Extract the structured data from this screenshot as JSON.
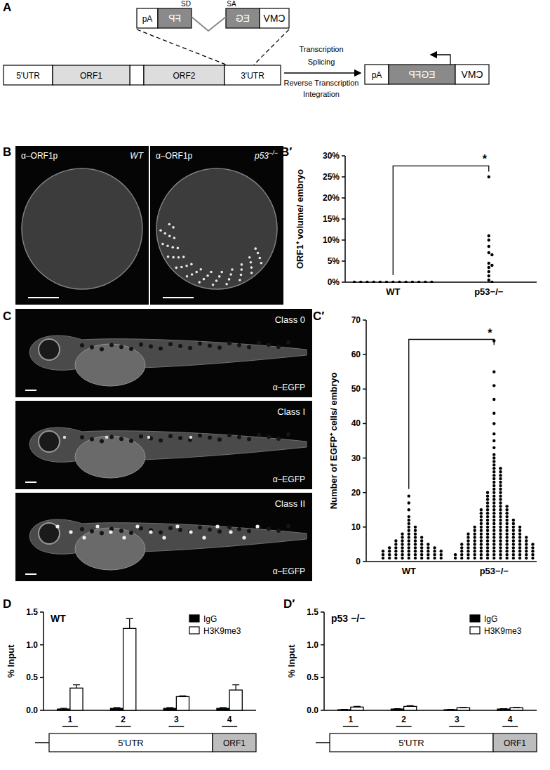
{
  "panel_labels": [
    "A",
    "B",
    "B′",
    "C",
    "C′",
    "D",
    "D′"
  ],
  "diagram": {
    "construct": {
      "labels": [
        "pA",
        "FP",
        "EG",
        "CMV"
      ],
      "splice": [
        "SD",
        "SA"
      ]
    },
    "element": [
      "5'UTR",
      "ORF1",
      "ORF2",
      "3'UTR"
    ],
    "arrow_text": [
      "Transcription",
      "Splicing",
      "Reverse Transcription",
      "Integration"
    ],
    "product": [
      "pA",
      "EGFP",
      "CMV"
    ]
  },
  "images_b": [
    {
      "stain": "α–ORF1p",
      "label": "WT",
      "sup": ""
    },
    {
      "stain": "α–ORF1p",
      "label": "p53",
      "sup": "−/−"
    }
  ],
  "images_c": [
    {
      "label": "Class 0",
      "stain": "α–EGFP"
    },
    {
      "label": "Class I",
      "stain": "α–EGFP"
    },
    {
      "label": "Class II",
      "stain": "α–EGFP"
    }
  ],
  "gene_diagram": [
    "5'UTR",
    "ORF1"
  ],
  "chart_data": [
    {
      "type": "strip",
      "ylabel": "ORF1⁺ volume/ embryo",
      "categories": [
        "WT",
        "p53−/−"
      ],
      "ylim": [
        0,
        30
      ],
      "yticks": [
        {
          "value": 0,
          "label": "0%"
        },
        {
          "value": 5,
          "label": "5%"
        },
        {
          "value": 10,
          "label": "10%"
        },
        {
          "value": 15,
          "label": "15%"
        },
        {
          "value": 20,
          "label": "20%"
        },
        {
          "value": 25,
          "label": "25%"
        },
        {
          "value": 30,
          "label": "30%"
        }
      ],
      "values": [
        [
          0,
          0,
          0,
          0,
          0,
          0,
          0,
          0,
          0,
          0,
          0,
          0,
          0
        ],
        [
          25,
          11,
          10,
          8.5,
          7,
          6.5,
          4.5,
          4,
          3.5,
          2.5,
          1.5,
          0.5,
          0
        ]
      ],
      "annotations": [
        "*"
      ]
    },
    {
      "type": "strip",
      "ylabel": "Number of EGFP⁺ cells/ embryo",
      "categories": [
        "WT",
        "p53−/−"
      ],
      "ylim": [
        0,
        70
      ],
      "yticks": [
        0,
        10,
        20,
        30,
        40,
        50,
        60,
        70
      ],
      "values": [
        [
          1,
          1,
          1,
          1,
          1,
          1,
          1,
          1,
          1,
          1,
          2,
          2,
          2,
          2,
          2,
          2,
          2,
          2,
          2,
          2,
          3,
          3,
          3,
          3,
          3,
          3,
          3,
          3,
          3,
          3,
          4,
          4,
          4,
          4,
          4,
          4,
          4,
          4,
          5,
          5,
          5,
          5,
          5,
          5,
          6,
          6,
          6,
          6,
          6,
          7,
          7,
          7,
          7,
          8,
          8,
          8,
          9,
          9,
          10,
          10,
          11,
          12,
          13,
          15,
          17,
          19
        ],
        [
          1,
          1,
          1,
          1,
          1,
          1,
          1,
          1,
          1,
          1,
          1,
          1,
          1,
          1,
          2,
          2,
          2,
          2,
          2,
          2,
          2,
          2,
          2,
          2,
          2,
          2,
          2,
          2,
          3,
          3,
          3,
          3,
          3,
          3,
          3,
          3,
          3,
          3,
          3,
          3,
          4,
          4,
          4,
          4,
          4,
          4,
          4,
          4,
          4,
          4,
          4,
          4,
          5,
          5,
          5,
          5,
          5,
          5,
          5,
          5,
          5,
          5,
          5,
          5,
          6,
          6,
          6,
          6,
          6,
          6,
          6,
          6,
          6,
          6,
          7,
          7,
          7,
          7,
          7,
          7,
          7,
          7,
          7,
          7,
          8,
          8,
          8,
          8,
          8,
          8,
          8,
          8,
          8,
          9,
          9,
          9,
          9,
          9,
          9,
          9,
          9,
          10,
          10,
          10,
          10,
          10,
          10,
          10,
          10,
          11,
          11,
          11,
          11,
          11,
          11,
          12,
          12,
          12,
          12,
          12,
          12,
          13,
          13,
          13,
          13,
          13,
          14,
          14,
          14,
          14,
          14,
          15,
          15,
          15,
          15,
          15,
          16,
          16,
          16,
          16,
          17,
          17,
          17,
          18,
          18,
          18,
          19,
          19,
          19,
          20,
          20,
          20,
          21,
          21,
          22,
          22,
          23,
          23,
          24,
          24,
          25,
          25,
          26,
          26,
          27,
          27,
          28,
          29,
          30,
          31,
          33,
          35,
          37,
          40,
          43,
          47,
          51,
          55,
          64
        ]
      ],
      "annotations": [
        "*"
      ]
    },
    {
      "type": "bar",
      "title": "WT",
      "ylabel": "% Input",
      "categories": [
        "1",
        "2",
        "3",
        "4"
      ],
      "ylim": [
        0,
        1.5
      ],
      "yticks": [
        {
          "value": 0,
          "label": "0.0"
        },
        {
          "value": 0.5,
          "label": "0.5"
        },
        {
          "value": 1,
          "label": "1.0"
        },
        {
          "value": 1.5,
          "label": "1.5"
        }
      ],
      "legend": "upper right",
      "series": [
        {
          "name": "IgG",
          "color": "#000000",
          "values": [
            0.02,
            0.03,
            0.03,
            0.03
          ],
          "errors": [
            0.01,
            0.01,
            0.01,
            0.01
          ]
        },
        {
          "name": "H3K9me3",
          "color": "#ffffff",
          "values": [
            0.34,
            1.25,
            0.21,
            0.31
          ],
          "errors": [
            0.05,
            0.15,
            0.01,
            0.08
          ]
        }
      ]
    },
    {
      "type": "bar",
      "title": "p53 −/−",
      "ylabel": "% Input",
      "categories": [
        "1",
        "2",
        "3",
        "4"
      ],
      "ylim": [
        0,
        1.5
      ],
      "yticks": [
        {
          "value": 0,
          "label": "0.0"
        },
        {
          "value": 0.5,
          "label": "0.5"
        },
        {
          "value": 1,
          "label": "1.0"
        },
        {
          "value": 1.5,
          "label": "1.5"
        }
      ],
      "legend": "upper right",
      "series": [
        {
          "name": "IgG",
          "color": "#000000",
          "values": [
            0.01,
            0.02,
            0.01,
            0.02
          ],
          "errors": [
            0.005,
            0.005,
            0.005,
            0.005
          ]
        },
        {
          "name": "H3K9me3",
          "color": "#ffffff",
          "values": [
            0.05,
            0.06,
            0.04,
            0.04
          ],
          "errors": [
            0.01,
            0.01,
            0.005,
            0.005
          ]
        }
      ]
    }
  ]
}
